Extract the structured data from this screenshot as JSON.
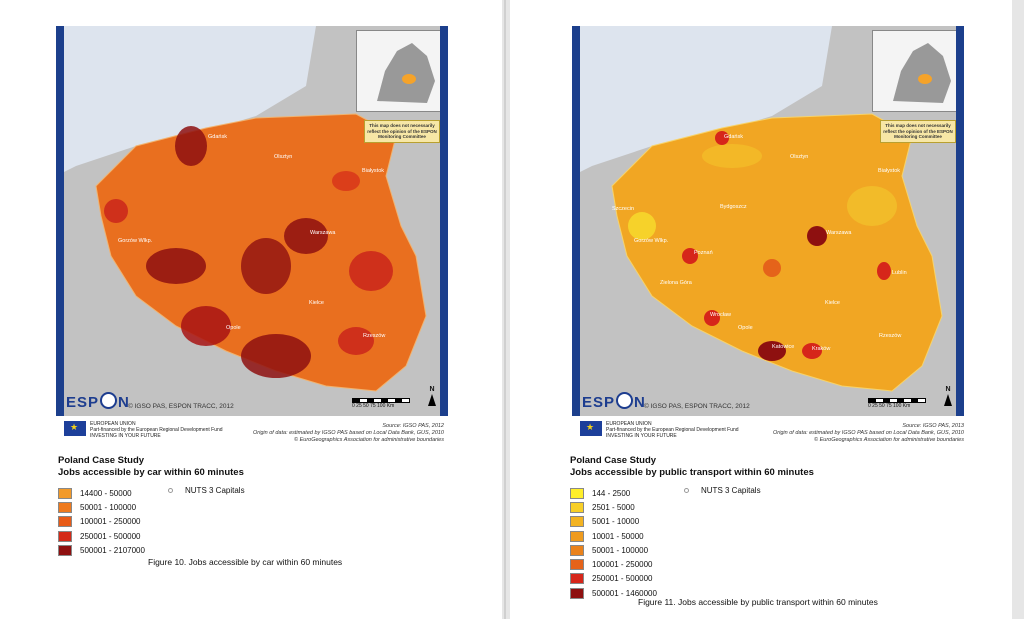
{
  "colors": {
    "sea": "#c9d6e3",
    "land_other": "#c2c2c2",
    "frame": "#1c3f8c",
    "car_scale": [
      "#f29a2a",
      "#ee7a1e",
      "#e85b17",
      "#d42a18",
      "#8e1010"
    ],
    "pt_scale": [
      "#ffef2a",
      "#f8cf27",
      "#f3b321",
      "#ef9b1e",
      "#ea821b",
      "#e5631a",
      "#d6261a",
      "#8e1010"
    ]
  },
  "left": {
    "copyright": "© IGSO PAS, ESPON TRACC, 2012",
    "eu_text": [
      "EUROPEAN UNION",
      "Part-financed by the European Regional Development Fund",
      "INVESTING IN YOUR FUTURE"
    ],
    "source": [
      "Source: IGSO PAS, 2012",
      "Origin of data: estimated by IGSO PAS based on Local Data Bank, GUS, 2010",
      "© EuroGeographics Association for administrative boundaries"
    ],
    "title": "Poland Case Study",
    "subtitle": "Jobs accessible by car within 60 minutes",
    "legend": [
      "14400 - 50000",
      "50001 - 100000",
      "100001 - 250000",
      "250001 - 500000",
      "500001 - 2107000"
    ],
    "nuts": "NUTS 3 Capitals",
    "caption": "Figure 10. Jobs accessible by car within 60 minutes",
    "cities": [
      "Gdańsk",
      "Olsztyn",
      "Białystok",
      "Gorzów Wlkp.",
      "Warszawa",
      "Kielce",
      "Rzeszów",
      "Opole"
    ]
  },
  "right": {
    "copyright": "© IGSO PAS, ESPON TRACC, 2012",
    "eu_text": [
      "EUROPEAN UNION",
      "Part-financed by the European Regional Development Fund",
      "INVESTING IN YOUR FUTURE"
    ],
    "source": [
      "Source: IGSO PAS, 2013",
      "Origin of data: estimated by IGSO PAS based on Local Data Bank, GUS, 2010",
      "© EuroGeographics Association for administrative boundaries"
    ],
    "title": "Poland Case Study",
    "subtitle": "Jobs accessible by public transport within 60 minutes",
    "legend": [
      "144 - 2500",
      "2501 - 5000",
      "5001 - 10000",
      "10001 - 50000",
      "50001 - 100000",
      "100001 - 250000",
      "250001 - 500000",
      "500001 - 1460000"
    ],
    "nuts": "NUTS 3 Capitals",
    "caption": "Figure 11. Jobs accessible by public transport within 60 minutes",
    "cities": [
      "Gdańsk",
      "Olsztyn",
      "Białystok",
      "Szczecin",
      "Bydgoszcz",
      "Gorzów Wlkp.",
      "Poznań",
      "Warszawa",
      "Zielona Góra",
      "Lublin",
      "Kielce",
      "Wrocław",
      "Opole",
      "Katowice",
      "Kraków",
      "Rzeszów"
    ]
  },
  "map": {
    "disclaimer": "This map does not necessarily reflect the opinion of the ESPON Monitoring Committee",
    "scale": "0  25  50  75  100 Km",
    "north": "N",
    "espon": "ESPON"
  }
}
